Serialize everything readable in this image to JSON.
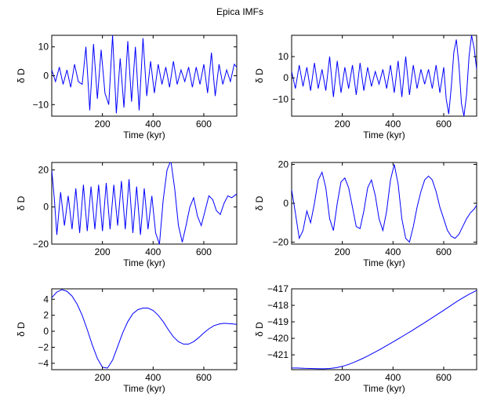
{
  "figure": {
    "title": "Epica IMFs"
  },
  "chart_data": [
    {
      "type": "line",
      "xlabel": "Time (kyr)",
      "ylabel": "δ D",
      "xlim": [
        0,
        730
      ],
      "ylim": [
        -14,
        14
      ],
      "xticks": [
        200,
        400,
        600
      ],
      "yticks": [
        -10,
        0,
        10
      ],
      "series": [
        {
          "color": "#0000ff",
          "x": [
            0,
            15,
            30,
            45,
            60,
            75,
            90,
            105,
            120,
            135,
            150,
            165,
            180,
            195,
            210,
            225,
            240,
            255,
            270,
            285,
            300,
            315,
            330,
            345,
            360,
            375,
            390,
            405,
            420,
            435,
            450,
            465,
            480,
            495,
            510,
            525,
            540,
            555,
            570,
            585,
            600,
            615,
            630,
            645,
            660,
            675,
            690,
            705,
            720,
            730
          ],
          "y": [
            2,
            -2,
            3,
            -3,
            2,
            -4,
            4,
            -2,
            -3,
            10,
            -12,
            11,
            -8,
            9,
            -6,
            -10,
            14,
            -13,
            6,
            -11,
            12,
            -9,
            10,
            -12,
            13,
            -7,
            5,
            -6,
            4,
            -3,
            3,
            -4,
            5,
            -3,
            2,
            -2,
            3,
            -4,
            3,
            -3,
            4,
            -6,
            8,
            -7,
            4,
            -3,
            2,
            -2,
            4,
            3
          ]
        }
      ]
    },
    {
      "type": "line",
      "xlabel": "Time (kyr)",
      "ylabel": "δ D",
      "xlim": [
        0,
        730
      ],
      "ylim": [
        -18,
        20
      ],
      "xticks": [
        200,
        400,
        600
      ],
      "yticks": [
        -10,
        0,
        10
      ],
      "series": [
        {
          "color": "#0000ff",
          "x": [
            0,
            15,
            30,
            45,
            60,
            75,
            90,
            105,
            120,
            135,
            150,
            165,
            180,
            195,
            210,
            225,
            240,
            255,
            270,
            285,
            300,
            315,
            330,
            345,
            360,
            375,
            390,
            405,
            420,
            435,
            450,
            465,
            480,
            495,
            510,
            525,
            540,
            555,
            570,
            585,
            600,
            610,
            620,
            630,
            640,
            650,
            660,
            670,
            680,
            690,
            700,
            710,
            720,
            730
          ],
          "y": [
            3,
            -5,
            6,
            -4,
            5,
            -6,
            7,
            -5,
            4,
            -6,
            10,
            -9,
            8,
            -7,
            5,
            -5,
            6,
            -8,
            7,
            -6,
            5,
            -4,
            3,
            -3,
            4,
            -5,
            6,
            -7,
            8,
            -9,
            10,
            -8,
            6,
            -5,
            4,
            -3,
            4,
            -5,
            6,
            -7,
            5,
            -10,
            -17,
            -4,
            12,
            18,
            6,
            -12,
            -18,
            -8,
            10,
            20,
            14,
            4
          ]
        }
      ]
    },
    {
      "type": "line",
      "xlabel": "Time (kyr)",
      "ylabel": "δ D",
      "xlim": [
        0,
        730
      ],
      "ylim": [
        -20,
        24
      ],
      "xticks": [
        200,
        400,
        600
      ],
      "yticks": [
        -20,
        0,
        20
      ],
      "series": [
        {
          "color": "#0000ff",
          "x": [
            0,
            10,
            20,
            35,
            50,
            65,
            80,
            95,
            110,
            125,
            140,
            155,
            170,
            185,
            200,
            215,
            230,
            245,
            260,
            275,
            290,
            305,
            320,
            335,
            350,
            365,
            380,
            395,
            410,
            425,
            440,
            455,
            470,
            485,
            500,
            515,
            530,
            545,
            560,
            575,
            590,
            605,
            620,
            635,
            650,
            665,
            680,
            695,
            710,
            730
          ],
          "y": [
            20,
            5,
            -15,
            8,
            -10,
            6,
            -12,
            10,
            -14,
            12,
            -13,
            11,
            -12,
            12,
            -13,
            13,
            -12,
            12,
            -10,
            14,
            -12,
            15,
            -14,
            11,
            -15,
            10,
            -12,
            6,
            -14,
            -20,
            4,
            20,
            25,
            10,
            -10,
            -19,
            -10,
            0,
            5,
            -5,
            -10,
            -2,
            6,
            4,
            -2,
            -4,
            2,
            6,
            5,
            7
          ]
        }
      ]
    },
    {
      "type": "line",
      "xlabel": "Time (kyr)",
      "ylabel": "δ D",
      "xlim": [
        0,
        730
      ],
      "ylim": [
        -21,
        21
      ],
      "xticks": [
        200,
        400,
        600
      ],
      "yticks": [
        -20,
        0,
        20
      ],
      "series": [
        {
          "color": "#0000ff",
          "x": [
            0,
            15,
            30,
            45,
            60,
            75,
            90,
            105,
            120,
            135,
            150,
            165,
            180,
            195,
            210,
            225,
            240,
            255,
            270,
            285,
            300,
            315,
            330,
            345,
            360,
            375,
            390,
            405,
            420,
            435,
            450,
            465,
            480,
            495,
            510,
            525,
            540,
            555,
            570,
            585,
            600,
            615,
            630,
            645,
            660,
            675,
            690,
            705,
            720,
            730
          ],
          "y": [
            7,
            -5,
            -18,
            -14,
            -4,
            -10,
            0,
            12,
            16,
            8,
            -8,
            -14,
            0,
            11,
            13,
            8,
            -2,
            -12,
            -13,
            -4,
            8,
            12,
            4,
            -8,
            -14,
            -4,
            12,
            20,
            10,
            -8,
            -18,
            -20,
            -12,
            -2,
            6,
            12,
            14,
            12,
            6,
            -2,
            -8,
            -14,
            -17,
            -18,
            -16,
            -12,
            -8,
            -5,
            -3,
            -1
          ]
        }
      ]
    },
    {
      "type": "line",
      "xlabel": "Time (kyr)",
      "ylabel": "δ D",
      "xlim": [
        0,
        730
      ],
      "ylim": [
        -4.8,
        5.3
      ],
      "xticks": [
        200,
        400,
        600
      ],
      "yticks": [
        -4,
        -2,
        0,
        2,
        4
      ],
      "series": [
        {
          "color": "#0000ff",
          "x": [
            0,
            20,
            40,
            60,
            80,
            100,
            120,
            140,
            160,
            180,
            200,
            220,
            240,
            260,
            280,
            300,
            320,
            340,
            360,
            380,
            400,
            420,
            440,
            460,
            480,
            500,
            520,
            540,
            560,
            580,
            600,
            620,
            640,
            660,
            680,
            700,
            720,
            730
          ],
          "y": [
            4.2,
            4.9,
            5.2,
            5.0,
            4.4,
            3.4,
            2.0,
            0.2,
            -1.7,
            -3.4,
            -4.5,
            -4.6,
            -3.6,
            -1.9,
            -0.2,
            1.2,
            2.2,
            2.7,
            2.9,
            2.9,
            2.6,
            2.0,
            1.2,
            0.2,
            -0.7,
            -1.3,
            -1.6,
            -1.6,
            -1.3,
            -0.8,
            -0.2,
            0.3,
            0.7,
            0.9,
            1.0,
            0.95,
            0.9,
            0.85
          ]
        }
      ]
    },
    {
      "type": "line",
      "xlabel": "Time (kyr)",
      "ylabel": "δ D",
      "xlim": [
        0,
        730
      ],
      "ylim": [
        -421.9,
        -417
      ],
      "xticks": [
        200,
        400,
        600
      ],
      "yticks": [
        -421,
        -420,
        -419,
        -418,
        -417
      ],
      "series": [
        {
          "color": "#0000ff",
          "x": [
            0,
            25,
            50,
            75,
            100,
            125,
            150,
            175,
            200,
            225,
            250,
            275,
            300,
            325,
            350,
            375,
            400,
            425,
            450,
            475,
            500,
            525,
            550,
            575,
            600,
            625,
            650,
            675,
            700,
            730
          ],
          "y": [
            -421.8,
            -421.8,
            -421.82,
            -421.83,
            -421.84,
            -421.85,
            -421.83,
            -421.78,
            -421.7,
            -421.58,
            -421.43,
            -421.26,
            -421.07,
            -420.87,
            -420.66,
            -420.44,
            -420.22,
            -419.99,
            -419.76,
            -419.53,
            -419.29,
            -419.05,
            -418.8,
            -418.55,
            -418.3,
            -418.04,
            -417.79,
            -417.55,
            -417.33,
            -417.1
          ]
        }
      ]
    }
  ]
}
